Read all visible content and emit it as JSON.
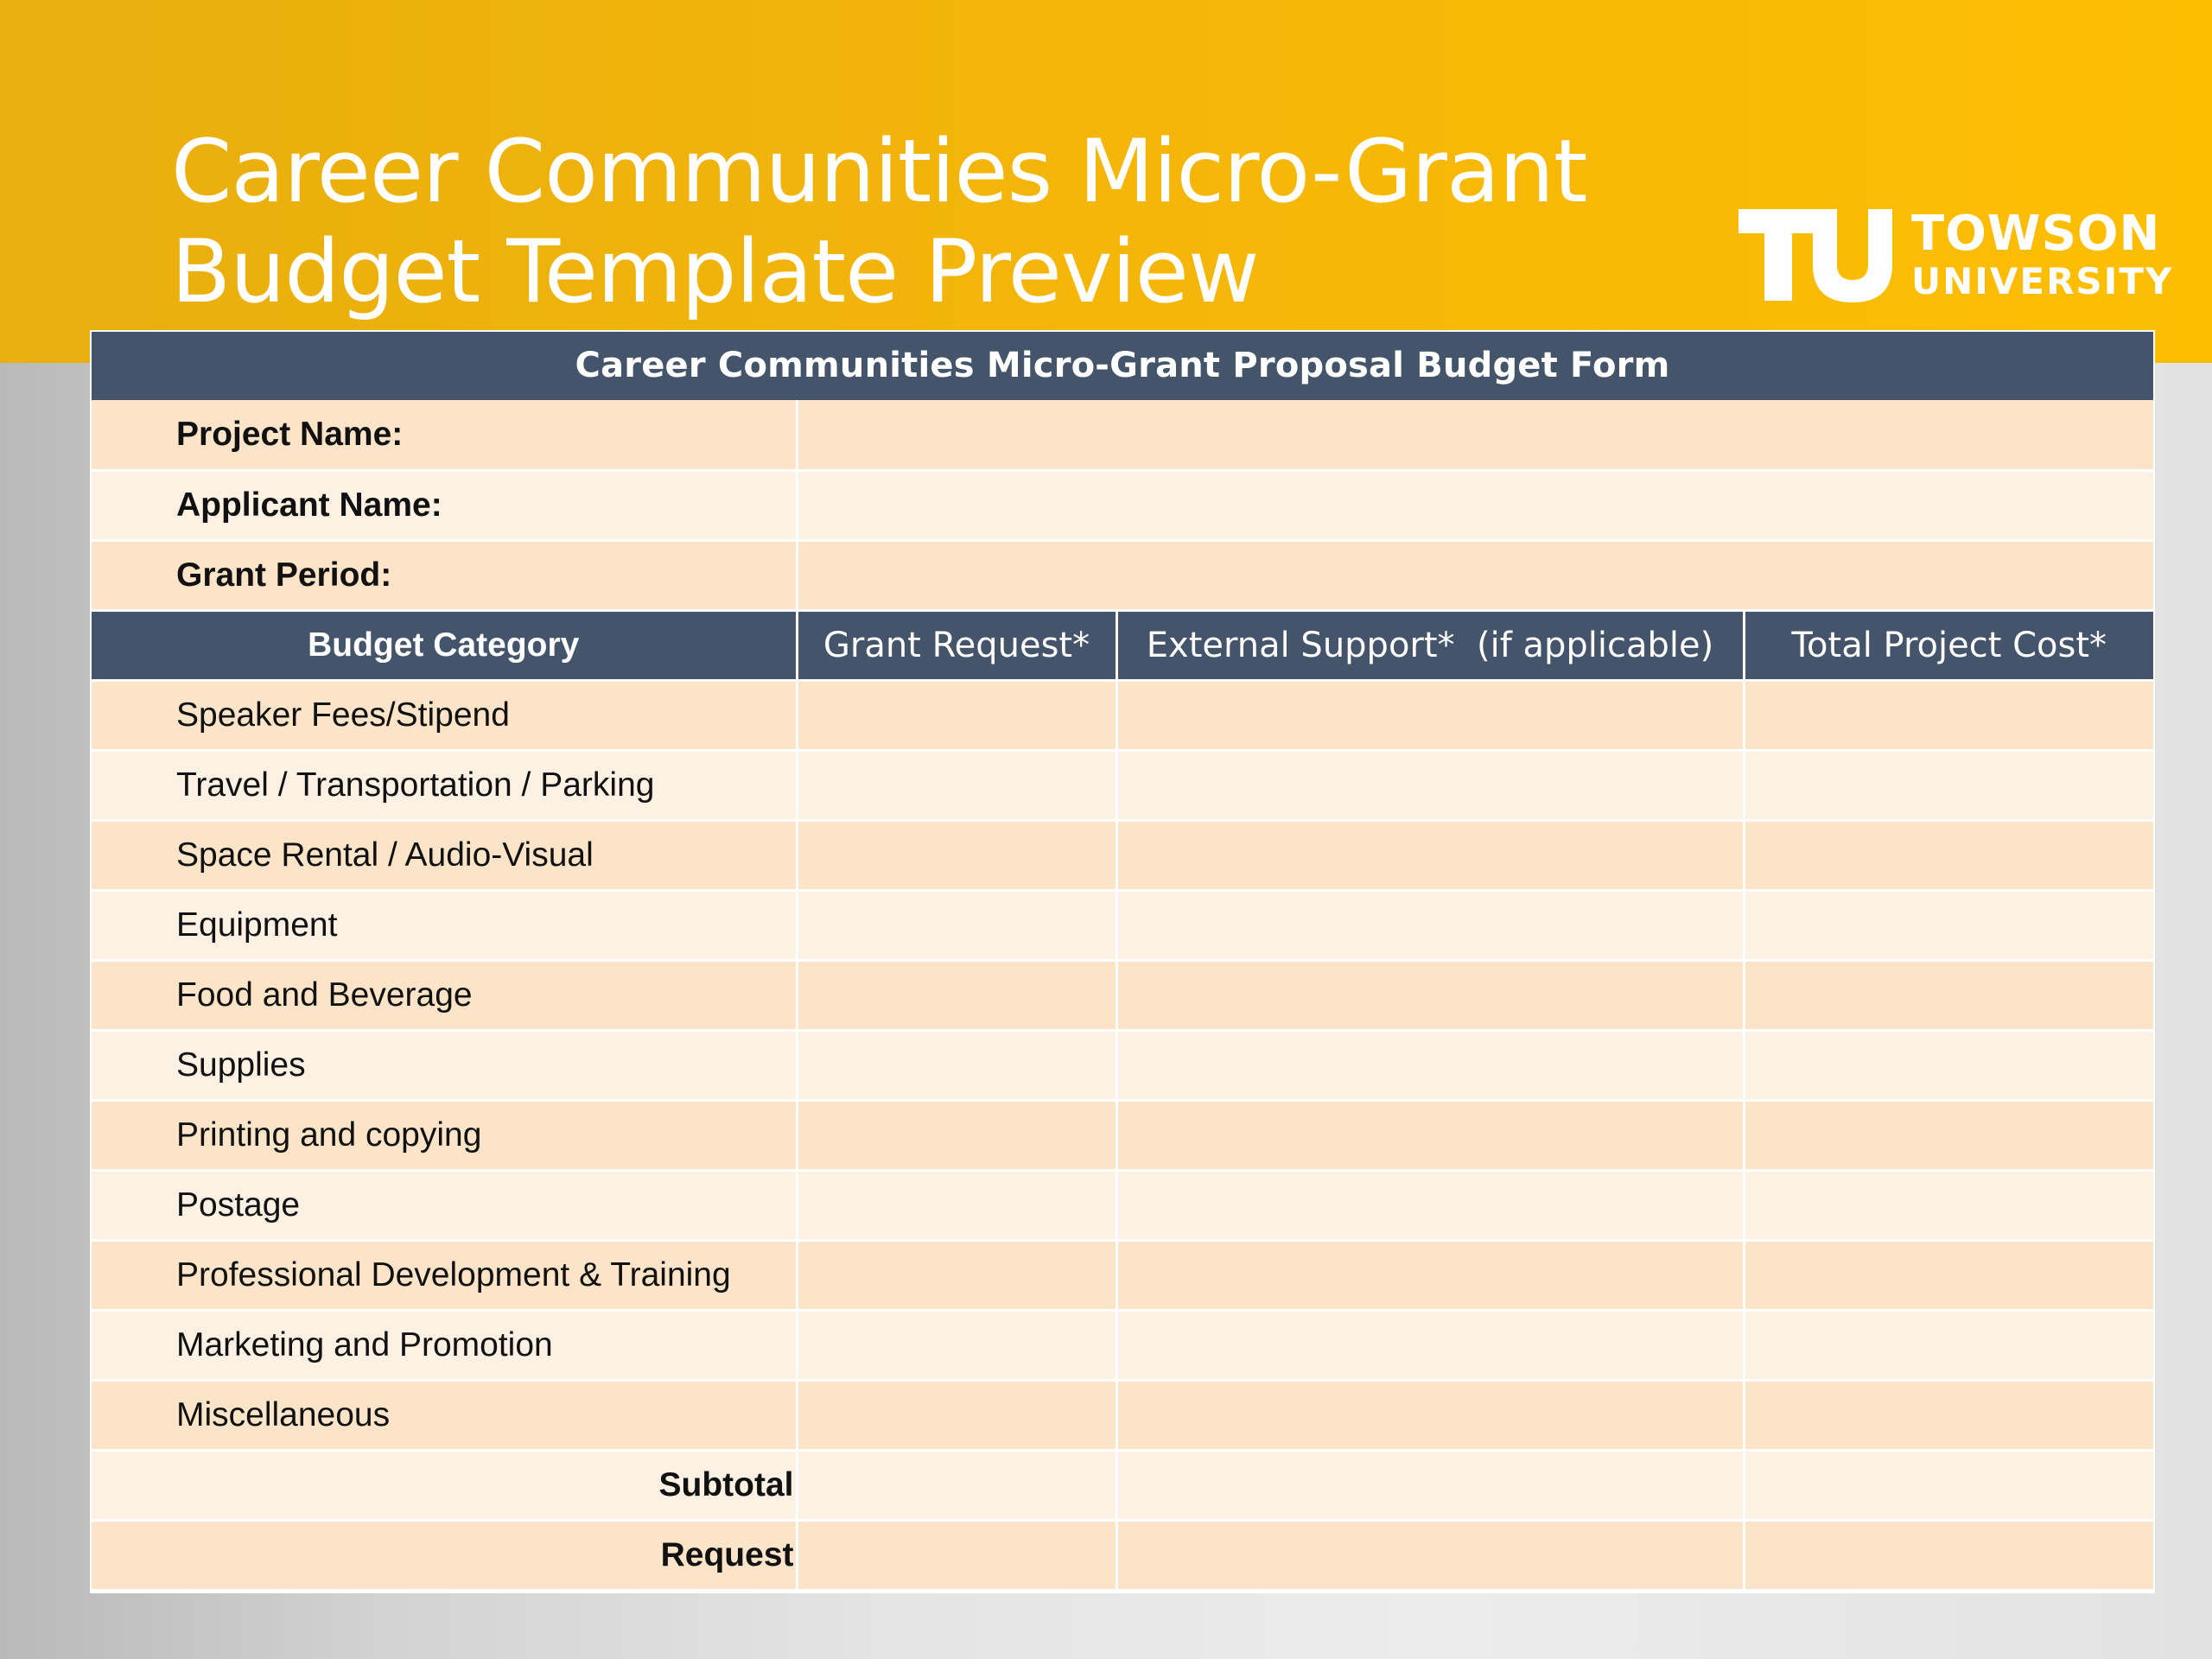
{
  "slide": {
    "title_line1": "Career Communities Micro-Grant",
    "title_line2": "Budget Template Preview"
  },
  "logo": {
    "line1": "TOWSON",
    "line2": "UNIVERSITY"
  },
  "form": {
    "title": "Career Communities Micro-Grant Proposal Budget Form",
    "info_fields": [
      "Project Name:",
      "Applicant Name:",
      "Grant Period:"
    ],
    "columns": [
      "Budget Category",
      "Grant Request*",
      "External Support*  (if applicable)",
      "Total Project Cost*"
    ],
    "categories": [
      "Speaker Fees/Stipend",
      "Travel / Transportation / Parking",
      "Space Rental / Audio-Visual",
      "Equipment",
      "Food and Beverage",
      "Supplies",
      "Printing and copying",
      "Postage",
      "Professional Development & Training",
      "Marketing and Promotion",
      "Miscellaneous"
    ],
    "totals": [
      "Subtotal",
      "Request"
    ]
  },
  "colors": {
    "banner": "#fdbe02",
    "header": "#44546a",
    "row_dark": "#fce4c9",
    "row_light": "#fdf1e4"
  }
}
